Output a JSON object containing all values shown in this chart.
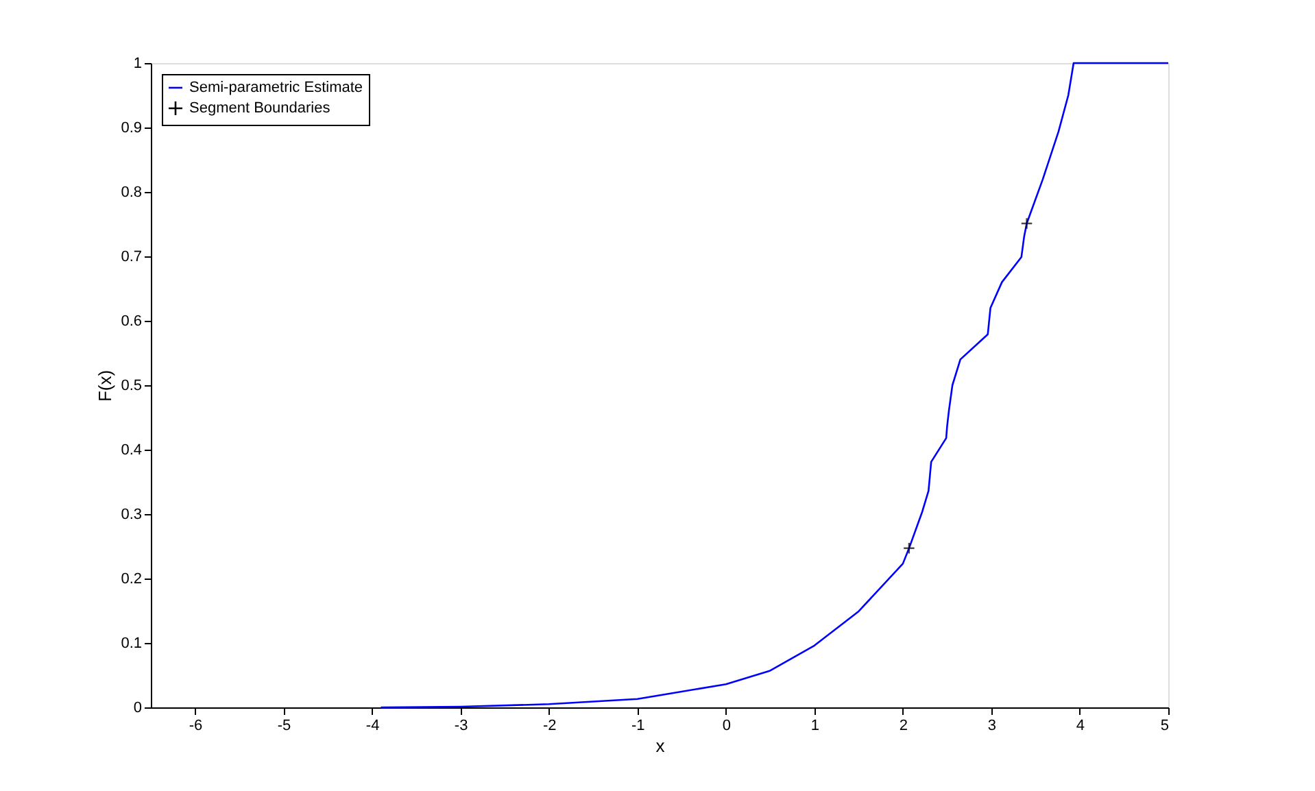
{
  "chart_data": {
    "type": "line",
    "xlabel": "x",
    "ylabel": "F(x)",
    "xlim": [
      -6.5,
      5
    ],
    "ylim": [
      0,
      1
    ],
    "xticks": [
      -6,
      -5,
      -4,
      -3,
      -2,
      -1,
      0,
      1,
      2,
      3,
      4,
      5
    ],
    "yticks": [
      0,
      0.1,
      0.2,
      0.3,
      0.4,
      0.5,
      0.6,
      0.7,
      0.8,
      0.9,
      1
    ],
    "grid": false,
    "legend": "top left",
    "series": [
      {
        "name": "Semi-parametric Estimate",
        "color": "#0000ff",
        "marker": "none",
        "line_style": "solid",
        "x": [
          -3.9,
          -3,
          -2,
          -1,
          0,
          0.5,
          1,
          1.5,
          2,
          2.07,
          2.22,
          2.29,
          2.32,
          2.49,
          2.5,
          2.52,
          2.56,
          2.65,
          2.96,
          2.99,
          3.12,
          3.34,
          3.37,
          3.4,
          3.58,
          3.76,
          3.87,
          3.93,
          5
        ],
        "values": [
          0,
          0.001,
          0.005,
          0.013,
          0.036,
          0.057,
          0.096,
          0.149,
          0.223,
          0.247,
          0.304,
          0.336,
          0.381,
          0.418,
          0.436,
          0.46,
          0.5,
          0.54,
          0.579,
          0.62,
          0.66,
          0.699,
          0.73,
          0.751,
          0.819,
          0.894,
          0.95,
          1,
          1
        ]
      },
      {
        "name": "Segment Boundaries",
        "type": "scatter",
        "color": "#000000",
        "marker": "cross",
        "x": [
          2.07,
          3.4
        ],
        "values": [
          0.247,
          0.751
        ]
      }
    ]
  }
}
